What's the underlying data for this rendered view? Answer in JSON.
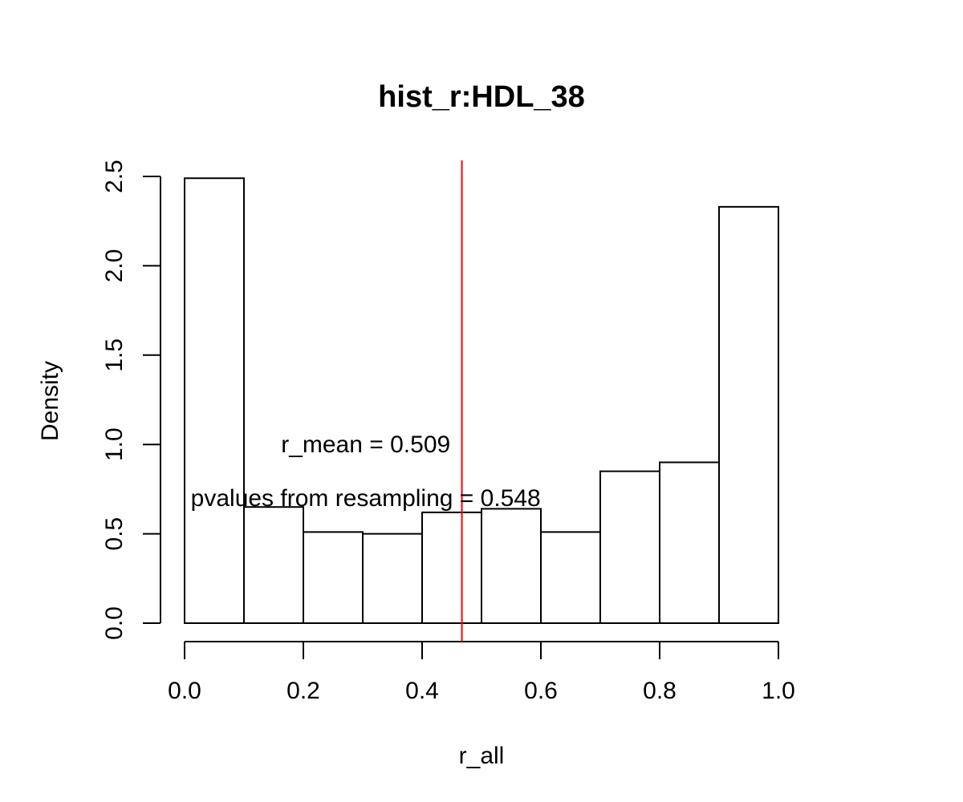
{
  "chart_data": {
    "type": "bar",
    "title": "hist_r:HDL_38",
    "xlabel": "r_all",
    "ylabel": "Density",
    "bins": [
      {
        "x0": 0.0,
        "x1": 0.1,
        "density": 2.49
      },
      {
        "x0": 0.1,
        "x1": 0.2,
        "density": 0.65
      },
      {
        "x0": 0.2,
        "x1": 0.3,
        "density": 0.51
      },
      {
        "x0": 0.3,
        "x1": 0.4,
        "density": 0.5
      },
      {
        "x0": 0.4,
        "x1": 0.5,
        "density": 0.62
      },
      {
        "x0": 0.5,
        "x1": 0.6,
        "density": 0.64
      },
      {
        "x0": 0.6,
        "x1": 0.7,
        "density": 0.51
      },
      {
        "x0": 0.7,
        "x1": 0.8,
        "density": 0.85
      },
      {
        "x0": 0.8,
        "x1": 0.9,
        "density": 0.9
      },
      {
        "x0": 0.9,
        "x1": 1.0,
        "density": 2.33
      }
    ],
    "xlim": [
      0.0,
      1.0
    ],
    "ylim": [
      0.0,
      2.5
    ],
    "x_ticks": [
      "0.0",
      "0.2",
      "0.4",
      "0.6",
      "0.8",
      "1.0"
    ],
    "y_ticks": [
      "0.0",
      "0.5",
      "1.0",
      "1.5",
      "2.0",
      "2.5"
    ],
    "vline": {
      "x": 0.467,
      "color": "#ff0000"
    },
    "annotations": [
      {
        "text": "r_mean = 0.509",
        "x": 0.305,
        "y": 1.0
      },
      {
        "text": "pvalues from resampling = 0.548",
        "x": 0.305,
        "y": 0.7
      }
    ],
    "bar_fill": "#ffffff",
    "bar_stroke": "#000000",
    "grid": false,
    "legend": "none"
  }
}
